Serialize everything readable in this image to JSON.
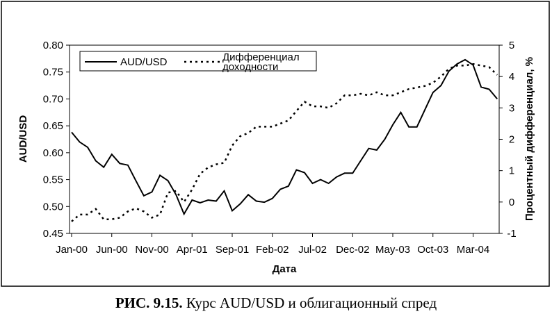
{
  "chart_data": {
    "type": "line",
    "title": "",
    "xlabel": "Дата",
    "ylabel_left": "AUD/USD",
    "ylabel_right": "Процентный дифференциал, %",
    "left_ylim": [
      0.45,
      0.8
    ],
    "left_yticks": [
      "0.45",
      "0.50",
      "0.55",
      "0.60",
      "0.65",
      "0.70",
      "0.75",
      "0.80"
    ],
    "right_ylim": [
      -1,
      5
    ],
    "right_yticks": [
      "-1",
      "0",
      "1",
      "2",
      "3",
      "4",
      "5"
    ],
    "x_tick_labels": [
      "Jan-00",
      "Jun-00",
      "Nov-00",
      "Apr-01",
      "Sep-01",
      "Feb-02",
      "Jul-02",
      "Dec-02",
      "May-03",
      "Oct-03",
      "Mar-04"
    ],
    "months_count": 54,
    "grid": false,
    "legend_position": "top-left",
    "series": [
      {
        "name": "AUD/USD",
        "axis": "left",
        "style": "solid",
        "values": [
          0.638,
          0.62,
          0.61,
          0.585,
          0.573,
          0.597,
          0.58,
          0.577,
          0.548,
          0.52,
          0.527,
          0.558,
          0.548,
          0.522,
          0.486,
          0.512,
          0.507,
          0.512,
          0.51,
          0.529,
          0.492,
          0.505,
          0.522,
          0.51,
          0.508,
          0.515,
          0.532,
          0.538,
          0.568,
          0.563,
          0.543,
          0.55,
          0.543,
          0.555,
          0.562,
          0.562,
          0.585,
          0.608,
          0.605,
          0.625,
          0.652,
          0.675,
          0.648,
          0.648,
          0.68,
          0.712,
          0.725,
          0.752,
          0.765,
          0.773,
          0.763,
          0.722,
          0.718,
          0.7
        ]
      },
      {
        "name": "Дифференциал доходности",
        "axis": "right",
        "style": "dotted",
        "values": [
          -0.62,
          -0.4,
          -0.4,
          -0.22,
          -0.55,
          -0.55,
          -0.5,
          -0.3,
          -0.2,
          -0.3,
          -0.5,
          -0.4,
          0.3,
          0.35,
          0.0,
          0.4,
          0.9,
          1.1,
          1.2,
          1.25,
          1.8,
          2.1,
          2.2,
          2.4,
          2.4,
          2.4,
          2.5,
          2.6,
          2.9,
          3.2,
          3.05,
          3.05,
          3.0,
          3.15,
          3.4,
          3.4,
          3.45,
          3.4,
          3.5,
          3.4,
          3.4,
          3.5,
          3.6,
          3.65,
          3.7,
          3.8,
          4.0,
          4.25,
          4.35,
          4.35,
          4.4,
          4.35,
          4.3,
          4.05
        ]
      }
    ]
  },
  "legend": {
    "series1_label": "AUD/USD",
    "series2_label_line1": "Дифференциал",
    "series2_label_line2": "доходности"
  },
  "caption": {
    "figure_number": "РИС. 9.15.",
    "text": "Курс AUD/USD и облигационный спред"
  }
}
